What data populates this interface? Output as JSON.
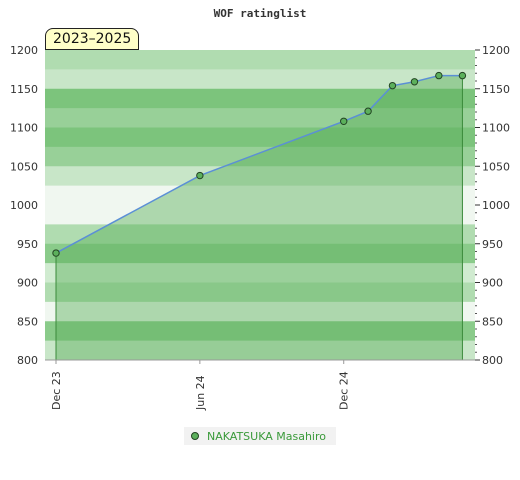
{
  "chart_data": {
    "type": "area",
    "title": "WOF ratinglist",
    "period_label": "2023–2025",
    "xlabel": "",
    "ylabel": "",
    "x_ticks": [
      "Dec 23",
      "Jun 24",
      "Dec 24"
    ],
    "y_ticks": [
      800,
      850,
      900,
      950,
      1000,
      1050,
      1100,
      1150,
      1200
    ],
    "ylim": [
      800,
      1200
    ],
    "xlim": [
      "2023-11-17",
      "2025-05-17"
    ],
    "grid": true,
    "legend_position": "bottom",
    "series": [
      {
        "name": "NAKATSUKA Masahiro",
        "color": "#5cb05c",
        "x": [
          "2023-12-01",
          "2024-06-01",
          "2024-12-01",
          "2025-01-01",
          "2025-02-01",
          "2025-03-01",
          "2025-04-01",
          "2025-05-01"
        ],
        "values": [
          938,
          1038,
          1108,
          1121,
          1154,
          1159,
          1167,
          1167
        ]
      }
    ]
  }
}
